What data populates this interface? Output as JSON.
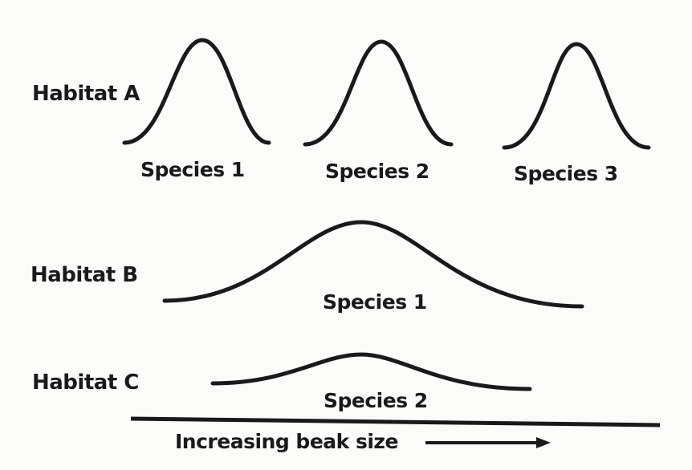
{
  "diagram": {
    "habitat_a": {
      "label": "Habitat A",
      "species": [
        "Species 1",
        "Species 2",
        "Species 3"
      ]
    },
    "habitat_b": {
      "label": "Habitat B",
      "species": [
        "Species 1"
      ]
    },
    "habitat_c": {
      "label": "Habitat C",
      "species": [
        "Species 2"
      ]
    },
    "axis": {
      "label": "Increasing beak size"
    }
  }
}
